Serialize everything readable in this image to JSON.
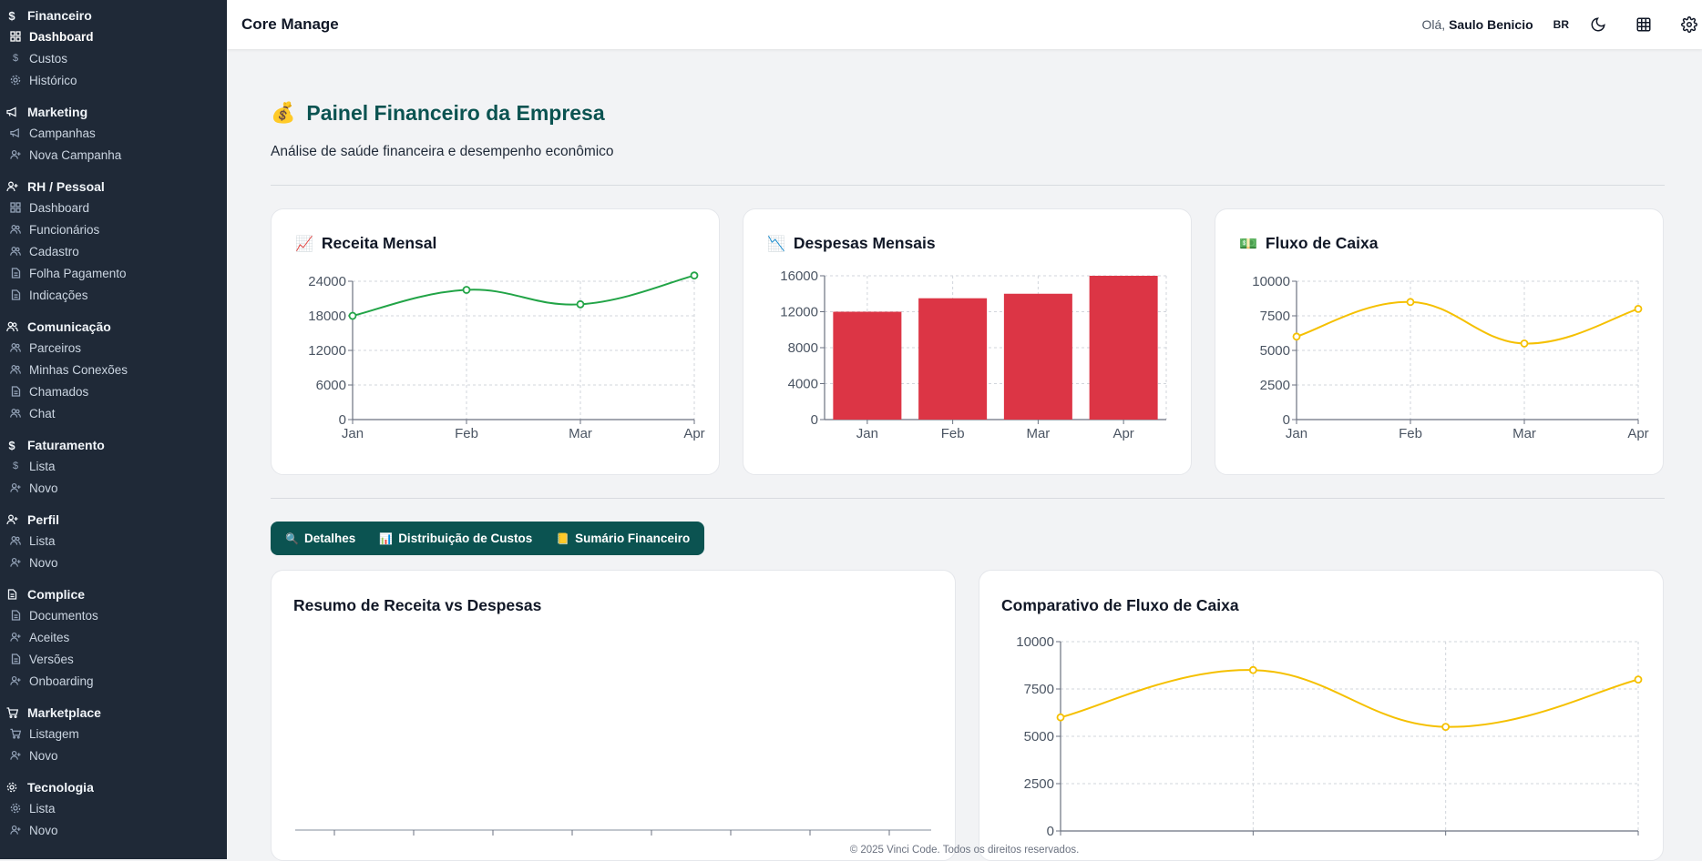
{
  "sidebar": {
    "groups": [
      {
        "title": "Financeiro",
        "icon": "dollar-icon",
        "items": [
          {
            "label": "Dashboard",
            "icon": "grid-icon",
            "active": true
          },
          {
            "label": "Custos",
            "icon": "dollar-icon"
          },
          {
            "label": "Histórico",
            "icon": "gear-icon"
          }
        ]
      },
      {
        "title": "Marketing",
        "icon": "megaphone-icon",
        "items": [
          {
            "label": "Campanhas",
            "icon": "megaphone-icon"
          },
          {
            "label": "Nova Campanha",
            "icon": "user-plus-icon"
          }
        ]
      },
      {
        "title": "RH / Pessoal",
        "icon": "user-plus-icon",
        "items": [
          {
            "label": "Dashboard",
            "icon": "grid-icon"
          },
          {
            "label": "Funcionários",
            "icon": "users-icon"
          },
          {
            "label": "Cadastro",
            "icon": "users-icon"
          },
          {
            "label": "Folha Pagamento",
            "icon": "document-icon"
          },
          {
            "label": "Indicações",
            "icon": "document-icon"
          }
        ]
      },
      {
        "title": "Comunicação",
        "icon": "users-icon",
        "items": [
          {
            "label": "Parceiros",
            "icon": "users-icon"
          },
          {
            "label": "Minhas Conexões",
            "icon": "users-icon"
          },
          {
            "label": "Chamados",
            "icon": "document-icon"
          },
          {
            "label": "Chat",
            "icon": "users-icon"
          }
        ]
      },
      {
        "title": "Faturamento",
        "icon": "dollar-icon",
        "items": [
          {
            "label": "Lista",
            "icon": "dollar-icon"
          },
          {
            "label": "Novo",
            "icon": "user-plus-icon"
          }
        ]
      },
      {
        "title": "Perfil",
        "icon": "user-plus-icon",
        "items": [
          {
            "label": "Lista",
            "icon": "users-icon"
          },
          {
            "label": "Novo",
            "icon": "user-plus-icon"
          }
        ]
      },
      {
        "title": "Complice",
        "icon": "document-icon",
        "items": [
          {
            "label": "Documentos",
            "icon": "document-icon"
          },
          {
            "label": "Aceites",
            "icon": "user-plus-icon"
          },
          {
            "label": "Versões",
            "icon": "document-icon"
          },
          {
            "label": "Onboarding",
            "icon": "user-plus-icon"
          }
        ]
      },
      {
        "title": "Marketplace",
        "icon": "cart-icon",
        "items": [
          {
            "label": "Listagem",
            "icon": "cart-icon"
          },
          {
            "label": "Novo",
            "icon": "user-plus-icon"
          }
        ]
      },
      {
        "title": "Tecnologia",
        "icon": "gear-icon",
        "items": [
          {
            "label": "Lista",
            "icon": "gear-icon"
          },
          {
            "label": "Novo",
            "icon": "user-plus-icon"
          }
        ]
      }
    ]
  },
  "topbar": {
    "brand": "Core Manage",
    "greeting": "Olá,",
    "user": "Saulo Benicio",
    "lang": "BR",
    "icons": [
      "moon-icon",
      "grid-apps-icon",
      "gear-icon"
    ]
  },
  "page": {
    "emoji": "💰",
    "title": "Painel Financeiro da Empresa",
    "subtitle": "Análise de saúde financeira e desempenho econômico"
  },
  "cards": [
    {
      "emoji": "📈",
      "title": "Receita Mensal"
    },
    {
      "emoji": "📉",
      "title": "Despesas Mensais"
    },
    {
      "emoji": "💵",
      "title": "Fluxo de Caixa"
    }
  ],
  "tabs": [
    {
      "emoji": "🔍",
      "label": "Detalhes"
    },
    {
      "emoji": "📊",
      "label": "Distribuição de Custos"
    },
    {
      "emoji": "📒",
      "label": "Sumário Financeiro"
    }
  ],
  "bottom": {
    "left_title": "Resumo de Receita vs Despesas",
    "right_title": "Comparativo de Fluxo de Caixa"
  },
  "footer": "© 2025 Vinci Code. Todos os direitos reservados.",
  "colors": {
    "green": "#22a447",
    "red": "#dc3545",
    "yellow": "#f5c000",
    "teal": "#0b5351",
    "sidebar": "#1f2937"
  },
  "chart_data": [
    {
      "type": "line",
      "title": "Receita Mensal",
      "categories": [
        "Jan",
        "Feb",
        "Mar",
        "Apr"
      ],
      "series": [
        {
          "values": [
            18000,
            22500,
            20000,
            25000
          ]
        }
      ],
      "ylim": [
        0,
        24000
      ],
      "yticks": [
        0,
        6000,
        12000,
        18000,
        24000
      ],
      "color": "#22a447",
      "grid": true
    },
    {
      "type": "bar",
      "title": "Despesas Mensais",
      "categories": [
        "Jan",
        "Feb",
        "Mar",
        "Apr"
      ],
      "series": [
        {
          "values": [
            12000,
            13500,
            14000,
            16000
          ]
        }
      ],
      "ylim": [
        0,
        16000
      ],
      "yticks": [
        0,
        4000,
        8000,
        12000,
        16000
      ],
      "color": "#dc3545",
      "grid": true
    },
    {
      "type": "line",
      "title": "Fluxo de Caixa",
      "categories": [
        "Jan",
        "Feb",
        "Mar",
        "Apr"
      ],
      "series": [
        {
          "values": [
            6000,
            8500,
            5500,
            8000
          ]
        }
      ],
      "ylim": [
        0,
        10000
      ],
      "yticks": [
        0,
        2500,
        5000,
        7500,
        10000
      ],
      "color": "#f5c000",
      "grid": true
    },
    {
      "type": "bar",
      "title": "Resumo de Receita vs Despesas",
      "categories": [],
      "series": [],
      "grid": false
    },
    {
      "type": "line",
      "title": "Comparativo de Fluxo de Caixa",
      "categories": [
        "",
        "",
        "",
        ""
      ],
      "series": [
        {
          "values": [
            6000,
            8500,
            5500,
            8000
          ]
        }
      ],
      "ylim": [
        0,
        10000
      ],
      "yticks": [
        0,
        2500,
        5000,
        7500,
        10000
      ],
      "color": "#f5c000",
      "grid": true
    }
  ]
}
